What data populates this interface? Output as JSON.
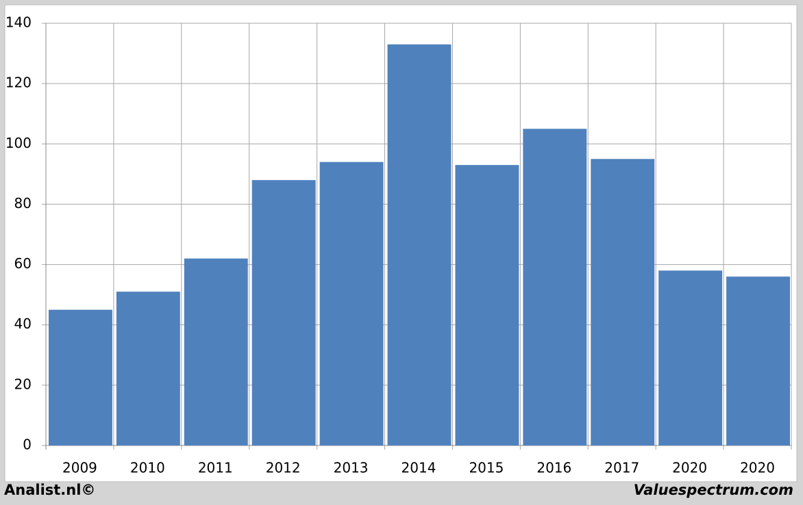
{
  "chart_data": {
    "type": "bar",
    "categories": [
      "2009",
      "2010",
      "2011",
      "2012",
      "2013",
      "2014",
      "2015",
      "2016",
      "2017",
      "2020",
      "2020"
    ],
    "values": [
      45,
      51,
      62,
      88,
      94,
      133,
      93,
      105,
      95,
      58,
      56
    ],
    "color": "#4f81bd",
    "ylim": [
      0,
      140
    ],
    "yticks": [
      0,
      20,
      40,
      60,
      80,
      100,
      120,
      140
    ],
    "grid": true,
    "source_left": "Analist.nl©",
    "source_right": "Valuespectrum.com"
  }
}
